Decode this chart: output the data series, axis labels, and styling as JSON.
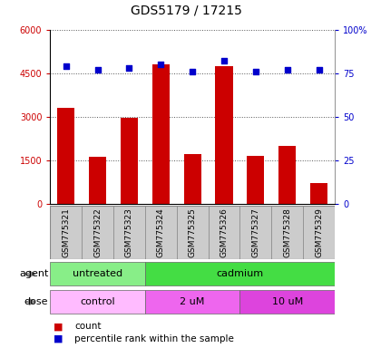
{
  "title": "GDS5179 / 17215",
  "samples": [
    "GSM775321",
    "GSM775322",
    "GSM775323",
    "GSM775324",
    "GSM775325",
    "GSM775326",
    "GSM775327",
    "GSM775328",
    "GSM775329"
  ],
  "counts": [
    3300,
    1600,
    2950,
    4800,
    1700,
    4750,
    1650,
    2000,
    700
  ],
  "percentiles": [
    79,
    77,
    78,
    80,
    76,
    82,
    76,
    77,
    77
  ],
  "bar_color": "#cc0000",
  "dot_color": "#0000cc",
  "ylim_left": [
    0,
    6000
  ],
  "ylim_right": [
    0,
    100
  ],
  "yticks_left": [
    0,
    1500,
    3000,
    4500,
    6000
  ],
  "ytick_labels_left": [
    "0",
    "1500",
    "3000",
    "4500",
    "6000"
  ],
  "yticks_right": [
    0,
    25,
    50,
    75,
    100
  ],
  "ytick_labels_right": [
    "0",
    "25",
    "50",
    "75",
    "100%"
  ],
  "agent_groups": [
    {
      "label": "untreated",
      "start": 0,
      "end": 3,
      "color": "#88ee88"
    },
    {
      "label": "cadmium",
      "start": 3,
      "end": 9,
      "color": "#44dd44"
    }
  ],
  "dose_groups": [
    {
      "label": "control",
      "start": 0,
      "end": 3,
      "color": "#ffbbff"
    },
    {
      "label": "2 uM",
      "start": 3,
      "end": 6,
      "color": "#ee66ee"
    },
    {
      "label": "10 uM",
      "start": 6,
      "end": 9,
      "color": "#dd44dd"
    }
  ],
  "grid_color": "#555555",
  "tick_color_left": "#cc0000",
  "tick_color_right": "#0000cc",
  "sample_bg_color": "#cccccc",
  "agent_label": "agent",
  "dose_label": "dose",
  "legend_count_label": "count",
  "legend_pct_label": "percentile rank within the sample",
  "bg_color": "#ffffff"
}
